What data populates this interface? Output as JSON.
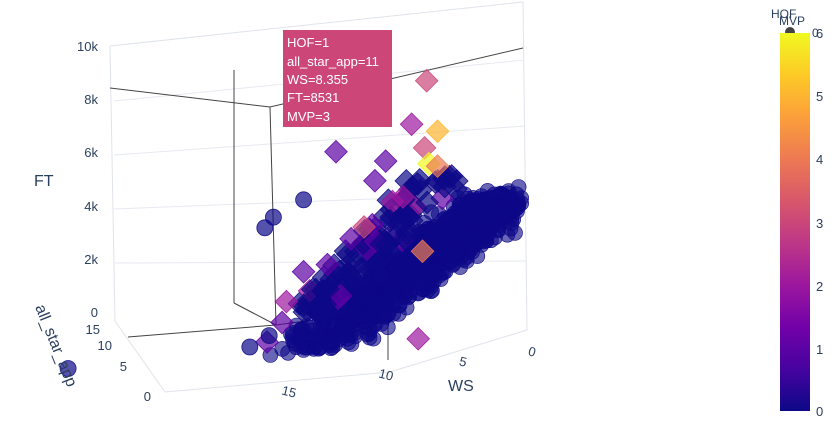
{
  "chart_data": {
    "type": "scatter3d",
    "axes": {
      "x": {
        "title": "WS",
        "ticks": [
          "0",
          "5",
          "10",
          "15"
        ]
      },
      "y": {
        "title": "all_star_app",
        "ticks": [
          "0",
          "5",
          "10",
          "15"
        ]
      },
      "z": {
        "title": "FT",
        "ticks": [
          "0",
          "2k",
          "4k",
          "6k",
          "8k",
          "10k"
        ]
      }
    },
    "symbols": {
      "circle": "HOF=0",
      "diamond": "HOF=1"
    },
    "legend_title": "HOF",
    "legend_marker_label": "0",
    "colorbar": {
      "title": "MVP",
      "ticks": [
        "0",
        "1",
        "2",
        "3",
        "4",
        "5",
        "6"
      ],
      "colorscale": [
        "#0d0887",
        "#46039f",
        "#7201a8",
        "#9c179e",
        "#bd3786",
        "#d8576b",
        "#ed7953",
        "#fb9f3a",
        "#fdca26",
        "#f0f921"
      ]
    },
    "hover": {
      "lines": [
        "HOF=1",
        "all_star_app=11",
        "WS=8.355",
        "FT=8531",
        "MVP=3"
      ],
      "color": "#cc4778"
    },
    "highlighted_points": [
      {
        "symbol": "diamond",
        "WS": 0.8,
        "all_star_app": 12,
        "FT": 9900,
        "MVP": 3
      },
      {
        "symbol": "diamond",
        "WS": 1.8,
        "all_star_app": 11,
        "FT": 8300,
        "MVP": 2
      },
      {
        "symbol": "diamond",
        "WS": 0.0,
        "all_star_app": 13,
        "FT": 8000,
        "MVP": 5
      },
      {
        "symbol": "diamond",
        "WS": 0.9,
        "all_star_app": 12,
        "FT": 7400,
        "MVP": 3
      },
      {
        "symbol": "diamond",
        "WS": 0.7,
        "all_star_app": 12,
        "FT": 6800,
        "MVP": 6
      },
      {
        "symbol": "diamond",
        "WS": 0.0,
        "all_star_app": 13,
        "FT": 6700,
        "MVP": 4
      },
      {
        "symbol": "diamond",
        "WS": 3.0,
        "all_star_app": 11,
        "FT": 7000,
        "MVP": 1
      },
      {
        "symbol": "diamond",
        "WS": 2.5,
        "all_star_app": 10,
        "FT": 5600,
        "MVP": 2
      },
      {
        "symbol": "diamond",
        "WS": 3.5,
        "all_star_app": 11,
        "FT": 6300,
        "MVP": 1
      },
      {
        "symbol": "diamond",
        "WS": 5.0,
        "all_star_app": 12,
        "FT": 7500,
        "MVP": 1
      },
      {
        "symbol": "diamond",
        "WS": 4.0,
        "all_star_app": 11,
        "FT": 4600,
        "MVP": 3
      },
      {
        "symbol": "diamond",
        "WS": 4.6,
        "all_star_app": 11,
        "FT": 4200,
        "MVP": 1
      },
      {
        "symbol": "diamond",
        "WS": 1.9,
        "all_star_app": 9,
        "FT": 3500,
        "MVP": 4
      },
      {
        "symbol": "diamond",
        "WS": 5.7,
        "all_star_app": 11,
        "FT": 3300,
        "MVP": 1
      },
      {
        "symbol": "diamond",
        "WS": 6.8,
        "all_star_app": 11,
        "FT": 3100,
        "MVP": 1
      },
      {
        "symbol": "diamond",
        "WS": 3.8,
        "all_star_app": 9,
        "FT": 2700,
        "MVP": 0
      },
      {
        "symbol": "diamond",
        "WS": 8.2,
        "all_star_app": 9,
        "FT": 2000,
        "MVP": 2
      },
      {
        "symbol": "diamond",
        "WS": 9.0,
        "all_star_app": 7,
        "FT": 1200,
        "MVP": 1
      },
      {
        "symbol": "diamond",
        "WS": 10.0,
        "all_star_app": 6,
        "FT": 500,
        "MVP": 1
      },
      {
        "symbol": "diamond",
        "WS": 3.0,
        "all_star_app": 6,
        "FT": 200,
        "MVP": 2
      },
      {
        "symbol": "circle",
        "WS": 16.5,
        "all_star_app": 15,
        "FT": 200,
        "MVP": 0
      },
      {
        "symbol": "circle",
        "WS": 6.5,
        "all_star_app": 12,
        "FT": 5800,
        "MVP": 0
      },
      {
        "symbol": "circle",
        "WS": 8.5,
        "all_star_app": 10,
        "FT": 5200,
        "MVP": 0
      },
      {
        "symbol": "circle",
        "WS": 9.5,
        "all_star_app": 8,
        "FT": 4800,
        "MVP": 0
      },
      {
        "symbol": "circle",
        "WS": 10.5,
        "all_star_app": 4,
        "FT": 700,
        "MVP": 0
      },
      {
        "symbol": "circle",
        "WS": 12.0,
        "all_star_app": 2,
        "FT": 300,
        "MVP": 0
      }
    ]
  }
}
